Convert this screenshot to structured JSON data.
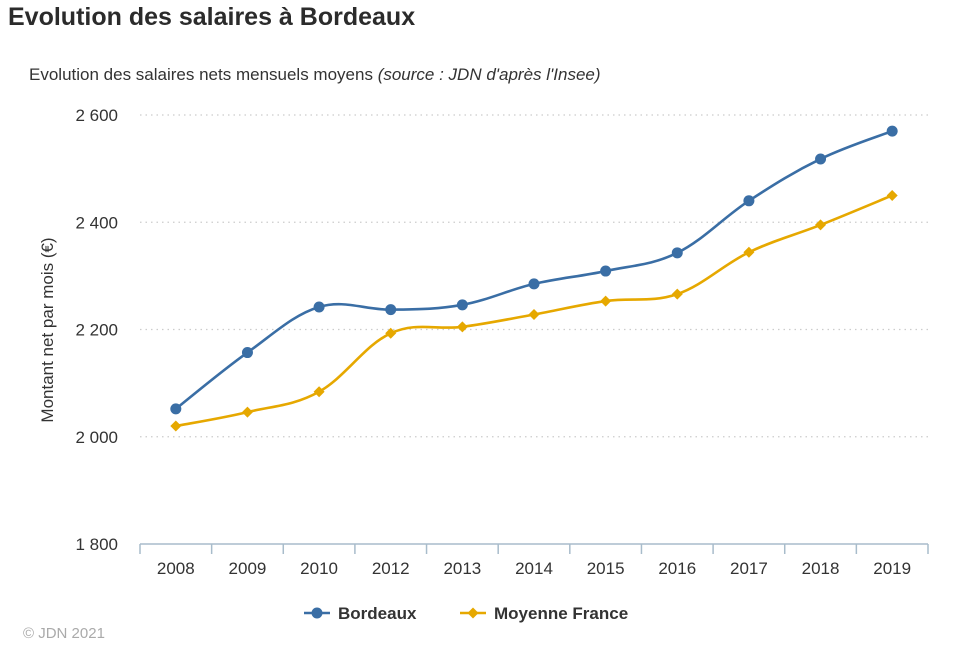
{
  "page": {
    "title": "Evolution des salaires à Bordeaux",
    "subtitle_main": "Evolution des salaires nets mensuels moyens ",
    "subtitle_source": "(source : JDN d'après l'Insee)",
    "copyright": "© JDN 2021"
  },
  "chart_data": {
    "type": "line",
    "title": "Evolution des salaires nets mensuels moyens",
    "subtitle": "(source : JDN d'après l'Insee)",
    "xlabel": "",
    "ylabel": "Montant net par mois (€)",
    "categories": [
      "2008",
      "2009",
      "2010",
      "2012",
      "2013",
      "2014",
      "2015",
      "2016",
      "2017",
      "2018",
      "2019"
    ],
    "ylim": [
      1800,
      2600
    ],
    "yticks": [
      1800,
      2000,
      2200,
      2400,
      2600
    ],
    "ytick_labels": [
      "1 800",
      "2 000",
      "2 200",
      "2 400",
      "2 600"
    ],
    "grid": "horizontal dotted",
    "legend_position": "bottom-center",
    "series": [
      {
        "name": "Bordeaux",
        "color": "#3a6ea5",
        "marker": "circle",
        "values": [
          2052,
          2157,
          2242,
          2237,
          2246,
          2285,
          2309,
          2343,
          2440,
          2518,
          2570
        ]
      },
      {
        "name": "Moyenne France",
        "color": "#e6a800",
        "marker": "diamond",
        "values": [
          2020,
          2046,
          2084,
          2193,
          2205,
          2228,
          2253,
          2266,
          2344,
          2395,
          2450
        ]
      }
    ]
  }
}
